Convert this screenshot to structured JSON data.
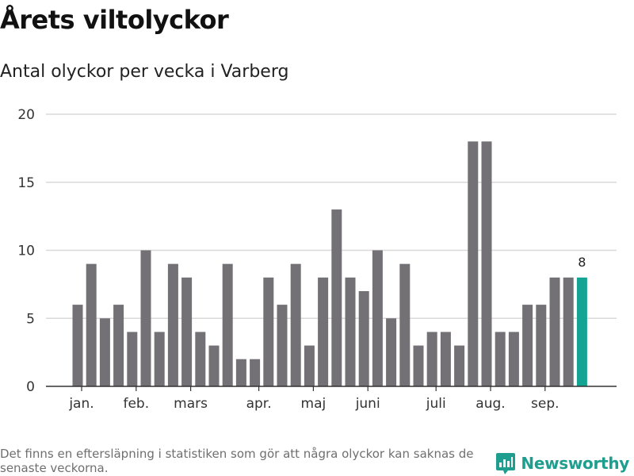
{
  "header": {
    "title": "Årets viltolyckor",
    "subtitle": "Antal olyckor per vecka i Varberg"
  },
  "footer": {
    "note": "Det finns en eftersläpning i statistiken som gör att några olyckor kan saknas de senaste veckorna.",
    "brand": "Newsworthy"
  },
  "colors": {
    "bar": "#737175",
    "highlight": "#14a494",
    "grid": "#d9d9d9",
    "axis": "#333333"
  },
  "chart_data": {
    "type": "bar",
    "title": "Årets viltolyckor",
    "subtitle": "Antal olyckor per vecka i Varberg",
    "xlabel": "",
    "ylabel": "",
    "ylim": [
      0,
      20
    ],
    "yticks": [
      0,
      5,
      10,
      15,
      20
    ],
    "grid": true,
    "month_labels": [
      {
        "label": "jan.",
        "week_index": 0.5
      },
      {
        "label": "feb.",
        "week_index": 4.5
      },
      {
        "label": "mars",
        "week_index": 8.5
      },
      {
        "label": "apr.",
        "week_index": 13.5
      },
      {
        "label": "maj",
        "week_index": 17.5
      },
      {
        "label": "juni",
        "week_index": 21.5
      },
      {
        "label": "juli",
        "week_index": 26.5
      },
      {
        "label": "aug.",
        "week_index": 30.5
      },
      {
        "label": "sep.",
        "week_index": 34.5
      }
    ],
    "values": [
      6,
      9,
      5,
      6,
      4,
      10,
      4,
      9,
      8,
      4,
      3,
      9,
      2,
      2,
      8,
      6,
      9,
      3,
      8,
      13,
      8,
      7,
      10,
      5,
      9,
      3,
      4,
      4,
      3,
      18,
      18,
      4,
      4,
      6,
      6,
      8,
      8,
      8
    ],
    "highlight_last": true,
    "last_value_label": "8"
  }
}
